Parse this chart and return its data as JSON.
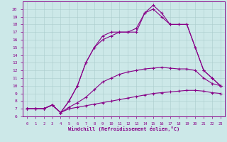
{
  "xlabel": "Windchill (Refroidissement éolien,°C)",
  "background_color": "#cce8e8",
  "line_color": "#880088",
  "grid_color": "#aacccc",
  "xlim": [
    -0.5,
    23.5
  ],
  "ylim": [
    6,
    21
  ],
  "xticks": [
    0,
    1,
    2,
    3,
    4,
    5,
    6,
    7,
    8,
    9,
    10,
    11,
    12,
    13,
    14,
    15,
    16,
    17,
    18,
    19,
    20,
    21,
    22,
    23
  ],
  "yticks": [
    6,
    7,
    8,
    9,
    10,
    11,
    12,
    13,
    14,
    15,
    16,
    17,
    18,
    19,
    20
  ],
  "series": [
    {
      "x": [
        0,
        1,
        2,
        3,
        4,
        5,
        6,
        7,
        8,
        9,
        10,
        11,
        12,
        13,
        14,
        15,
        16,
        17,
        18,
        19,
        20,
        21,
        22,
        23
      ],
      "y": [
        7,
        7,
        7,
        7.5,
        6.5,
        7,
        7.2,
        7.4,
        7.6,
        7.8,
        8,
        8.2,
        8.4,
        8.6,
        8.8,
        9,
        9.1,
        9.2,
        9.3,
        9.4,
        9.4,
        9.3,
        9.1,
        9.0
      ]
    },
    {
      "x": [
        0,
        1,
        2,
        3,
        4,
        5,
        6,
        7,
        8,
        9,
        10,
        11,
        12,
        13,
        14,
        15,
        16,
        17,
        18,
        19,
        20,
        21,
        22,
        23
      ],
      "y": [
        7,
        7,
        7,
        7.5,
        6.5,
        7.2,
        7.8,
        8.5,
        9.5,
        10.5,
        11,
        11.5,
        11.8,
        12,
        12.2,
        12.3,
        12.4,
        12.3,
        12.2,
        12.2,
        12,
        11,
        10.3,
        10.0
      ]
    },
    {
      "x": [
        0,
        1,
        2,
        3,
        4,
        5,
        6,
        7,
        8,
        9,
        10,
        11,
        12,
        13,
        14,
        15,
        16,
        17,
        18,
        19,
        20,
        21,
        22,
        23
      ],
      "y": [
        7,
        7,
        7,
        7.5,
        6.5,
        8,
        10,
        13,
        15,
        16,
        16.5,
        17,
        17,
        17.5,
        19.5,
        20,
        19,
        18,
        18,
        18,
        15,
        12,
        11,
        10
      ]
    },
    {
      "x": [
        0,
        1,
        2,
        3,
        4,
        5,
        6,
        7,
        8,
        9,
        10,
        11,
        12,
        13,
        14,
        15,
        16,
        17,
        18,
        19,
        20,
        21,
        22,
        23
      ],
      "y": [
        7,
        7,
        7,
        7.5,
        6.5,
        8,
        10,
        13,
        15,
        16.5,
        17,
        17,
        17,
        17,
        19.5,
        20.5,
        19.5,
        18,
        18,
        18,
        15,
        12,
        11,
        10
      ]
    }
  ]
}
